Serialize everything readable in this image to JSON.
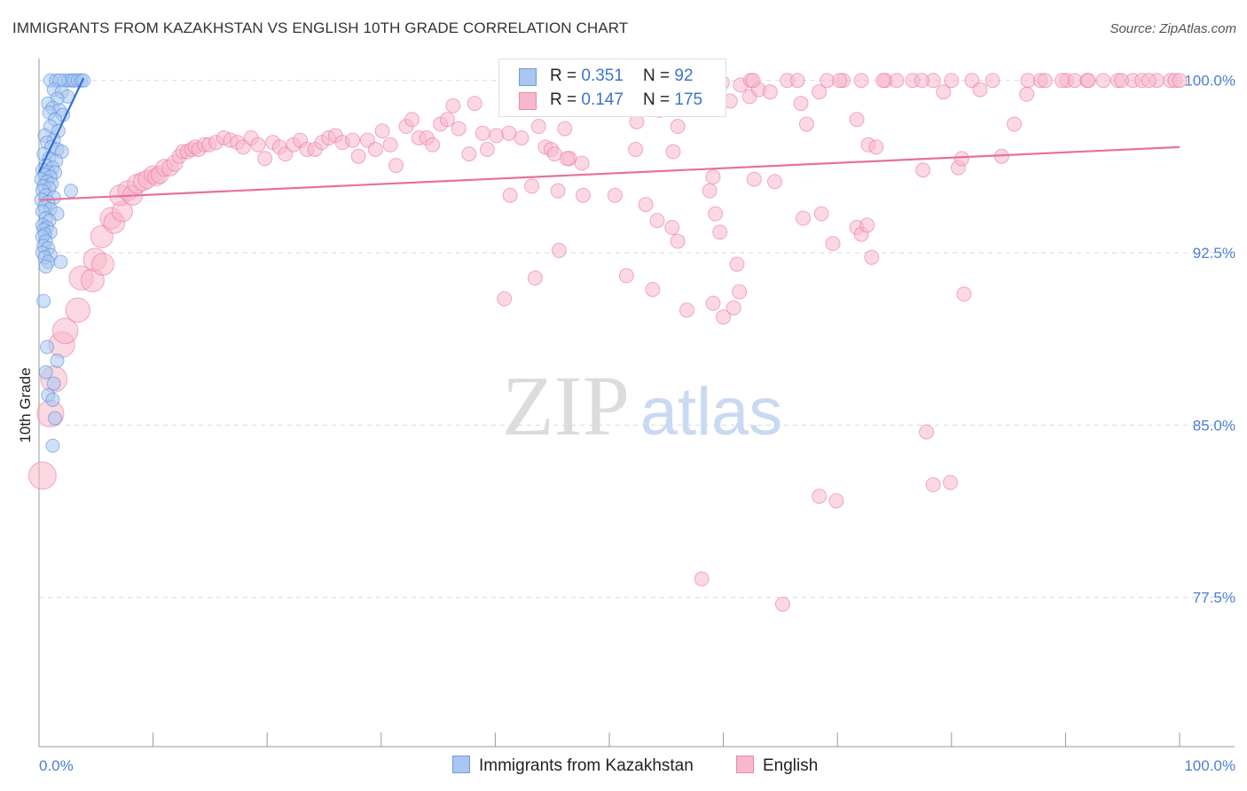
{
  "title": "IMMIGRANTS FROM KAZAKHSTAN VS ENGLISH 10TH GRADE CORRELATION CHART",
  "source": "Source: ZipAtlas.com",
  "watermark": {
    "zip": "ZIP",
    "atlas": "atlas"
  },
  "legend": {
    "rows": [
      {
        "r_label": "R = ",
        "r_value": "0.351",
        "n_label": "N = ",
        "n_value": "92",
        "color": "#a9c6f0",
        "border": "#6f9be0"
      },
      {
        "r_label": "R = ",
        "r_value": "0.147",
        "n_label": "N = ",
        "n_value": "175",
        "color": "#f7b8cb",
        "border": "#e98aa8"
      }
    ]
  },
  "bottom_legend": [
    {
      "label": "Immigrants from Kazakhstan",
      "color": "#a9c6f0",
      "border": "#6f9be0"
    },
    {
      "label": "English",
      "color": "#f7b8cb",
      "border": "#e98aa8"
    }
  ],
  "chart_data": {
    "type": "scatter",
    "title": "IMMIGRANTS FROM KAZAKHSTAN VS ENGLISH 10TH GRADE CORRELATION CHART",
    "xlabel": "",
    "ylabel": "10th Grade",
    "xlim": [
      0,
      100
    ],
    "ylim": [
      71,
      100.8
    ],
    "x_tick_labels": [
      "0.0%",
      "100.0%"
    ],
    "y_ticks": [
      77.5,
      85.0,
      92.5,
      100.0
    ],
    "y_tick_labels": [
      "77.5%",
      "85.0%",
      "92.5%",
      "100.0%"
    ],
    "grid": true,
    "series": [
      {
        "name": "Immigrants from Kazakhstan",
        "color": "#4d86d9",
        "fill": "#a9c6f0",
        "trend": {
          "x": [
            0.0,
            3.9
          ],
          "y": [
            96.0,
            100.1
          ]
        },
        "points": [
          [
            1.0,
            100
          ],
          [
            1.5,
            100
          ],
          [
            2.2,
            100
          ],
          [
            2.6,
            100
          ],
          [
            2.9,
            100
          ],
          [
            3.1,
            100
          ],
          [
            3.4,
            100
          ],
          [
            3.7,
            100
          ],
          [
            3.9,
            100
          ],
          [
            1.8,
            100
          ],
          [
            1.3,
            99.6
          ],
          [
            2.0,
            99.5
          ],
          [
            2.5,
            99.3
          ],
          [
            1.6,
            99.2
          ],
          [
            0.8,
            99.0
          ],
          [
            1.2,
            98.8
          ],
          [
            1.8,
            98.7
          ],
          [
            2.1,
            98.5
          ],
          [
            0.9,
            98.6
          ],
          [
            1.4,
            98.3
          ],
          [
            1.0,
            98.0
          ],
          [
            1.7,
            97.8
          ],
          [
            0.5,
            97.6
          ],
          [
            1.3,
            97.4
          ],
          [
            0.7,
            97.3
          ],
          [
            1.1,
            97.1
          ],
          [
            1.6,
            97.0
          ],
          [
            2.0,
            96.9
          ],
          [
            0.4,
            96.8
          ],
          [
            0.9,
            96.6
          ],
          [
            1.5,
            96.5
          ],
          [
            0.6,
            96.3
          ],
          [
            1.2,
            96.2
          ],
          [
            0.3,
            96.1
          ],
          [
            0.8,
            96.0
          ],
          [
            1.4,
            96.0
          ],
          [
            0.5,
            95.9
          ],
          [
            1.0,
            95.8
          ],
          [
            0.2,
            95.7
          ],
          [
            0.7,
            95.6
          ],
          [
            1.1,
            95.5
          ],
          [
            0.4,
            95.4
          ],
          [
            0.9,
            95.3
          ],
          [
            0.3,
            95.2
          ],
          [
            2.8,
            95.2
          ],
          [
            0.6,
            95.0
          ],
          [
            1.3,
            94.9
          ],
          [
            0.2,
            94.8
          ],
          [
            0.8,
            94.7
          ],
          [
            0.5,
            94.5
          ],
          [
            1.0,
            94.4
          ],
          [
            0.3,
            94.3
          ],
          [
            1.6,
            94.2
          ],
          [
            0.6,
            94.0
          ],
          [
            0.9,
            93.9
          ],
          [
            0.3,
            93.7
          ],
          [
            0.7,
            93.6
          ],
          [
            0.4,
            93.5
          ],
          [
            1.0,
            93.4
          ],
          [
            0.5,
            93.3
          ],
          [
            0.3,
            93.2
          ],
          [
            0.6,
            93.0
          ],
          [
            0.4,
            92.8
          ],
          [
            0.8,
            92.7
          ],
          [
            0.3,
            92.5
          ],
          [
            1.0,
            92.4
          ],
          [
            0.5,
            92.3
          ],
          [
            0.8,
            92.1
          ],
          [
            1.9,
            92.1
          ],
          [
            0.6,
            91.9
          ],
          [
            0.4,
            90.4
          ],
          [
            0.7,
            88.4
          ],
          [
            1.6,
            87.8
          ],
          [
            0.6,
            87.3
          ],
          [
            1.3,
            86.8
          ],
          [
            0.8,
            86.3
          ],
          [
            1.2,
            86.1
          ],
          [
            1.4,
            85.3
          ],
          [
            1.2,
            84.1
          ]
        ]
      },
      {
        "name": "English",
        "color": "#e8709a",
        "fill": "#f7b8cb",
        "trend": {
          "x": [
            0.0,
            100.0
          ],
          "y": [
            94.8,
            97.1
          ]
        },
        "points": [
          [
            0.3,
            82.8
          ],
          [
            1.0,
            85.5
          ],
          [
            1.3,
            87.0
          ],
          [
            2.0,
            88.5
          ],
          [
            2.3,
            89.1
          ],
          [
            3.4,
            90.0
          ],
          [
            3.7,
            91.4
          ],
          [
            4.7,
            91.3
          ],
          [
            4.9,
            92.2
          ],
          [
            5.6,
            92.0
          ],
          [
            5.5,
            93.2
          ],
          [
            6.3,
            94.0
          ],
          [
            6.6,
            93.8
          ],
          [
            7.3,
            94.3
          ],
          [
            7.1,
            95.0
          ],
          [
            7.8,
            95.2
          ],
          [
            8.2,
            95.0
          ],
          [
            8.6,
            95.5
          ],
          [
            9.1,
            95.6
          ],
          [
            9.5,
            95.7
          ],
          [
            10.0,
            95.9
          ],
          [
            10.3,
            95.8
          ],
          [
            10.6,
            95.9
          ],
          [
            11.0,
            96.2
          ],
          [
            11.5,
            96.2
          ],
          [
            11.9,
            96.4
          ],
          [
            12.3,
            96.7
          ],
          [
            12.6,
            96.9
          ],
          [
            13.0,
            96.9
          ],
          [
            13.4,
            97.0
          ],
          [
            13.7,
            97.1
          ],
          [
            14.0,
            97.0
          ],
          [
            14.5,
            97.2
          ],
          [
            14.9,
            97.2
          ],
          [
            15.5,
            97.3
          ],
          [
            16.2,
            97.5
          ],
          [
            16.8,
            97.4
          ],
          [
            17.4,
            97.3
          ],
          [
            17.9,
            97.1
          ],
          [
            18.6,
            97.5
          ],
          [
            19.2,
            97.2
          ],
          [
            19.8,
            96.6
          ],
          [
            20.5,
            97.3
          ],
          [
            21.1,
            97.1
          ],
          [
            21.6,
            96.8
          ],
          [
            22.3,
            97.2
          ],
          [
            22.9,
            97.4
          ],
          [
            23.5,
            97.0
          ],
          [
            24.2,
            97.0
          ],
          [
            24.8,
            97.3
          ],
          [
            25.4,
            97.5
          ],
          [
            26.0,
            97.6
          ],
          [
            26.6,
            97.3
          ],
          [
            27.5,
            97.4
          ],
          [
            28.0,
            96.7
          ],
          [
            28.8,
            97.4
          ],
          [
            29.5,
            97.0
          ],
          [
            30.1,
            97.8
          ],
          [
            30.8,
            97.2
          ],
          [
            31.3,
            96.3
          ],
          [
            32.2,
            98.0
          ],
          [
            32.7,
            98.3
          ],
          [
            33.3,
            97.5
          ],
          [
            34.0,
            97.5
          ],
          [
            34.5,
            97.2
          ],
          [
            35.2,
            98.1
          ],
          [
            35.8,
            98.3
          ],
          [
            36.3,
            98.9
          ],
          [
            36.8,
            97.9
          ],
          [
            38.2,
            99.0
          ],
          [
            37.7,
            96.8
          ],
          [
            38.9,
            97.7
          ],
          [
            39.3,
            97.0
          ],
          [
            40.1,
            97.6
          ],
          [
            41.2,
            97.7
          ],
          [
            42.3,
            97.5
          ],
          [
            42.8,
            98.8
          ],
          [
            43.8,
            98.0
          ],
          [
            44.4,
            97.1
          ],
          [
            44.9,
            97.0
          ],
          [
            45.2,
            96.8
          ],
          [
            46.1,
            97.9
          ],
          [
            46.5,
            96.6
          ],
          [
            47.6,
            96.4
          ],
          [
            48.7,
            99.9
          ],
          [
            49.0,
            100
          ],
          [
            51.3,
            99.2
          ],
          [
            52.4,
            98.2
          ],
          [
            52.3,
            97.0
          ],
          [
            52.5,
            99.5
          ],
          [
            54.4,
            98.7
          ],
          [
            55.6,
            96.9
          ],
          [
            55.3,
            99.9
          ],
          [
            56.0,
            98.0
          ],
          [
            56.5,
            99.5
          ],
          [
            57.6,
            99.1
          ],
          [
            58.1,
            98.9
          ],
          [
            59.0,
            98.9
          ],
          [
            59.9,
            99.9
          ],
          [
            60.6,
            99.1
          ],
          [
            61.5,
            99.8
          ],
          [
            62.4,
            100
          ],
          [
            62.3,
            99.3
          ],
          [
            63.1,
            99.6
          ],
          [
            64.1,
            99.5
          ],
          [
            65.6,
            100
          ],
          [
            66.8,
            99.0
          ],
          [
            67.3,
            98.1
          ],
          [
            68.4,
            99.5
          ],
          [
            69.1,
            100
          ],
          [
            70.5,
            100
          ],
          [
            71.7,
            98.3
          ],
          [
            72.1,
            100
          ],
          [
            72.7,
            97.2
          ],
          [
            73.4,
            97.1
          ],
          [
            74.2,
            100
          ],
          [
            75.2,
            100
          ],
          [
            76.6,
            100
          ],
          [
            77.5,
            96.1
          ],
          [
            78.4,
            100
          ],
          [
            79.3,
            99.5
          ],
          [
            80.6,
            96.2
          ],
          [
            80.9,
            96.6
          ],
          [
            81.8,
            100
          ],
          [
            82.5,
            99.6
          ],
          [
            84.4,
            96.7
          ],
          [
            85.5,
            98.1
          ],
          [
            86.6,
            99.4
          ],
          [
            87.8,
            100
          ],
          [
            88.2,
            100
          ],
          [
            90.1,
            100
          ],
          [
            90.8,
            100
          ],
          [
            91.9,
            100
          ],
          [
            93.3,
            100
          ],
          [
            94.6,
            100
          ],
          [
            95.9,
            100
          ],
          [
            96.7,
            100
          ],
          [
            98.0,
            100
          ],
          [
            99.2,
            100
          ],
          [
            99.6,
            100
          ],
          [
            55.8,
            100
          ],
          [
            62.6,
            100
          ],
          [
            66.5,
            100
          ],
          [
            70.2,
            100
          ],
          [
            74.0,
            100
          ],
          [
            77.4,
            100
          ],
          [
            80.0,
            100
          ],
          [
            83.6,
            100
          ],
          [
            86.7,
            100
          ],
          [
            89.7,
            100
          ],
          [
            92.0,
            100
          ],
          [
            94.9,
            100
          ],
          [
            97.3,
            100
          ],
          [
            100.0,
            100
          ],
          [
            43.2,
            95.4
          ],
          [
            45.5,
            95.2
          ],
          [
            47.7,
            95.0
          ],
          [
            50.5,
            95.0
          ],
          [
            53.2,
            94.6
          ],
          [
            54.2,
            93.9
          ],
          [
            55.5,
            93.6
          ],
          [
            56.0,
            93.0
          ],
          [
            59.1,
            95.8
          ],
          [
            58.8,
            95.2
          ],
          [
            59.3,
            94.2
          ],
          [
            59.7,
            93.4
          ],
          [
            61.2,
            92.0
          ],
          [
            62.7,
            95.7
          ],
          [
            64.5,
            95.6
          ],
          [
            67.0,
            94.0
          ],
          [
            68.6,
            94.2
          ],
          [
            69.6,
            92.9
          ],
          [
            71.7,
            93.6
          ],
          [
            72.1,
            93.3
          ],
          [
            72.6,
            93.7
          ],
          [
            73.0,
            92.3
          ],
          [
            41.3,
            95.0
          ],
          [
            45.6,
            92.6
          ],
          [
            46.3,
            96.6
          ],
          [
            51.5,
            91.5
          ],
          [
            53.8,
            90.9
          ],
          [
            56.8,
            90.0
          ],
          [
            59.1,
            90.3
          ],
          [
            60.0,
            89.7
          ],
          [
            60.9,
            90.1
          ],
          [
            61.4,
            90.8
          ],
          [
            81.1,
            90.7
          ],
          [
            77.8,
            84.7
          ],
          [
            78.4,
            82.4
          ],
          [
            79.9,
            82.5
          ],
          [
            68.4,
            81.9
          ],
          [
            69.9,
            81.7
          ],
          [
            58.1,
            78.3
          ],
          [
            65.2,
            77.2
          ],
          [
            40.8,
            90.5
          ],
          [
            43.5,
            91.4
          ]
        ]
      }
    ]
  }
}
